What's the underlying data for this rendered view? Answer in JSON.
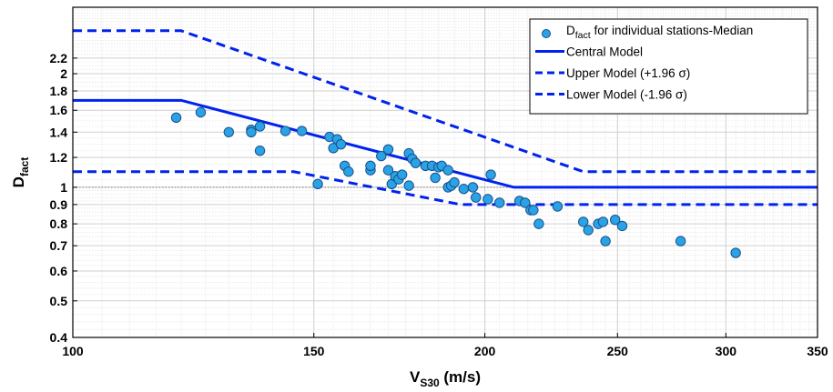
{
  "chart_data": {
    "type": "scatter",
    "xscale": "log",
    "yscale": "log",
    "xlim": [
      100,
      350
    ],
    "ylim": [
      0.4,
      3.0
    ],
    "grid": true,
    "minor_grid": true,
    "legend_position": "top-right",
    "xlabel": {
      "main": "V",
      "sub": "S30",
      "rest": " (m/s)"
    },
    "ylabel": {
      "main": "D",
      "sub": "fact"
    },
    "x_ticks": [
      100,
      150,
      200,
      250,
      300,
      350
    ],
    "x_tick_labels": [
      "100",
      "150",
      "200",
      "250",
      "300",
      "350"
    ],
    "y_ticks": [
      0.4,
      0.5,
      0.6,
      0.7,
      0.8,
      0.9,
      1,
      1.2,
      1.4,
      1.6,
      1.8,
      2,
      2.2
    ],
    "y_tick_labels": [
      "0.4",
      "0.5",
      "0.6",
      "0.7",
      "0.8",
      "0.9",
      "1",
      "1.2",
      "1.4",
      "1.6",
      "1.8",
      "2",
      "2.2"
    ],
    "reference_line": {
      "y": 1,
      "style": "dotted",
      "color": "#888888"
    },
    "series": [
      {
        "name_main": "D",
        "name_sub": "fact",
        "name_rest": " for individual stations-Median",
        "kind": "scatter",
        "color": "#29a3e6",
        "edge": "#1b4f8a",
        "points": [
          [
            119,
            1.53
          ],
          [
            124,
            1.58
          ],
          [
            130,
            1.4
          ],
          [
            135,
            1.42
          ],
          [
            135,
            1.4
          ],
          [
            137,
            1.25
          ],
          [
            137,
            1.45
          ],
          [
            143,
            1.41
          ],
          [
            147,
            1.41
          ],
          [
            151,
            1.02
          ],
          [
            154,
            1.36
          ],
          [
            155,
            1.27
          ],
          [
            156,
            1.34
          ],
          [
            157,
            1.3
          ],
          [
            158,
            1.14
          ],
          [
            159,
            1.1
          ],
          [
            165,
            1.11
          ],
          [
            165,
            1.14
          ],
          [
            168,
            1.21
          ],
          [
            170,
            1.26
          ],
          [
            170,
            1.11
          ],
          [
            171,
            1.02
          ],
          [
            172,
            1.07
          ],
          [
            173,
            1.05
          ],
          [
            174,
            1.08
          ],
          [
            176,
            1.23
          ],
          [
            176,
            1.01
          ],
          [
            177,
            1.19
          ],
          [
            178,
            1.16
          ],
          [
            181,
            1.14
          ],
          [
            183,
            1.14
          ],
          [
            184,
            1.06
          ],
          [
            185,
            1.13
          ],
          [
            186,
            1.14
          ],
          [
            188,
            1.11
          ],
          [
            188,
            1.0
          ],
          [
            189,
            1.01
          ],
          [
            190,
            1.03
          ],
          [
            193,
            0.99
          ],
          [
            196,
            1.0
          ],
          [
            197,
            0.94
          ],
          [
            201,
            0.93
          ],
          [
            202,
            1.08
          ],
          [
            205,
            0.91
          ],
          [
            212,
            0.92
          ],
          [
            214,
            0.91
          ],
          [
            216,
            0.87
          ],
          [
            217,
            0.87
          ],
          [
            219,
            0.8
          ],
          [
            226,
            0.89
          ],
          [
            236,
            0.81
          ],
          [
            238,
            0.77
          ],
          [
            242,
            0.8
          ],
          [
            244,
            0.81
          ],
          [
            245,
            0.72
          ],
          [
            249,
            0.82
          ],
          [
            252,
            0.79
          ],
          [
            278,
            0.72
          ],
          [
            305,
            0.67
          ]
        ]
      },
      {
        "name": "Central Model",
        "kind": "line",
        "dash": "solid",
        "color": "#0022ee",
        "points": [
          [
            100,
            1.7
          ],
          [
            120,
            1.7
          ],
          [
            210,
            1.0
          ],
          [
            350,
            1.0
          ]
        ]
      },
      {
        "name": "Upper Model (+1.96 σ)",
        "kind": "line",
        "dash": "dashed",
        "color": "#0022ee",
        "points": [
          [
            100,
            2.6
          ],
          [
            120,
            2.6
          ],
          [
            236,
            1.1
          ],
          [
            350,
            1.1
          ]
        ]
      },
      {
        "name": "Lower Model (-1.96 σ)",
        "kind": "line",
        "dash": "dashed",
        "color": "#0022ee",
        "points": [
          [
            100,
            1.1
          ],
          [
            145,
            1.1
          ],
          [
            192,
            0.9
          ],
          [
            350,
            0.9
          ]
        ]
      }
    ]
  }
}
